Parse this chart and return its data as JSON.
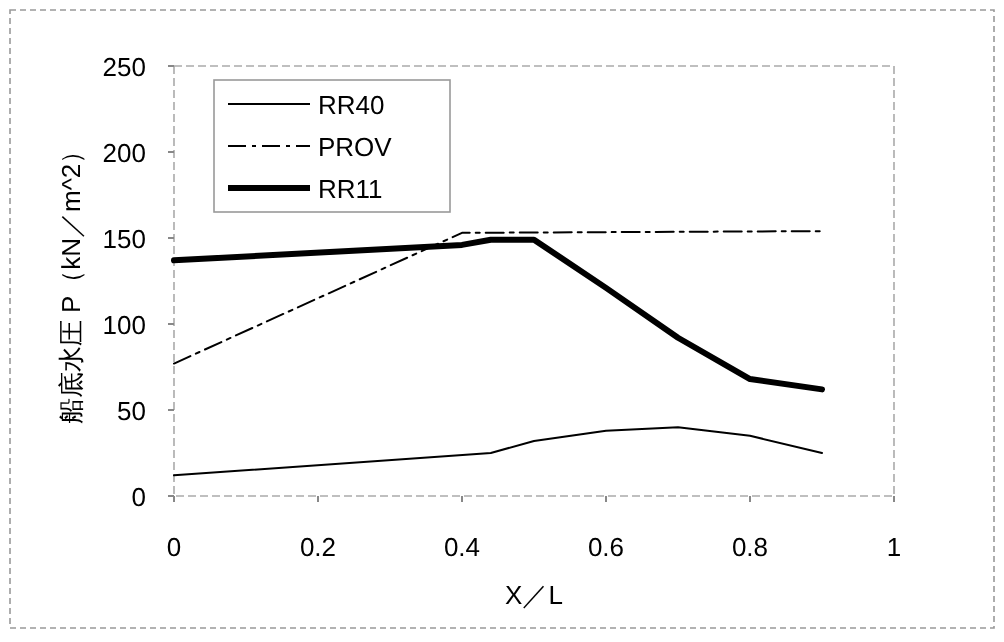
{
  "chart_data": {
    "type": "line",
    "xlabel": "X／L",
    "ylabel": "船底水圧 P（kN／m^2）",
    "xlim": [
      0,
      1
    ],
    "xticks": [
      0,
      0.2,
      0.4,
      0.6,
      0.8,
      1
    ],
    "ylim": [
      0,
      250
    ],
    "yticks": [
      0,
      50,
      100,
      150,
      200,
      250
    ],
    "grid": false,
    "legend": "top left",
    "marker": "none",
    "series": [
      {
        "name": "RR40",
        "color": "#000000",
        "line_style": "solid",
        "x": [
          0,
          0.44,
          0.5,
          0.6,
          0.7,
          0.8,
          0.9
        ],
        "values": [
          12,
          25,
          32,
          38,
          40,
          35,
          25
        ]
      },
      {
        "name": "PROV",
        "color": "#000000",
        "line_style": "dashed",
        "x": [
          0,
          0.4,
          0.9
        ],
        "values": [
          77,
          153,
          154
        ]
      },
      {
        "name": "RR11",
        "color": "#000000",
        "line_style": "solid",
        "x": [
          0,
          0.4,
          0.44,
          0.5,
          0.6,
          0.7,
          0.8,
          0.9
        ],
        "values": [
          137,
          146,
          149,
          149,
          121,
          92,
          68,
          62
        ]
      }
    ]
  }
}
